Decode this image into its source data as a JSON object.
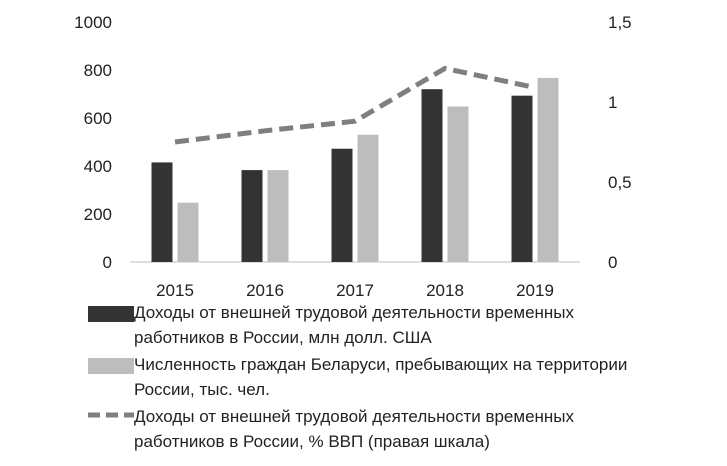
{
  "chart_data": {
    "type": "bar",
    "categories": [
      "2015",
      "2016",
      "2017",
      "2018",
      "2019"
    ],
    "series": [
      {
        "name": "Доходы от внешней трудовой деятельности временных работников в России, млн  долл. США",
        "type": "bar",
        "axis": "left",
        "color": "#333333",
        "values": [
          415,
          383,
          472,
          720,
          693
        ]
      },
      {
        "name": "Численность граждан Беларуси, пребывающих на территории России, тыс. чел.",
        "type": "bar",
        "axis": "left",
        "color": "#bdbdbd",
        "values": [
          247,
          383,
          530,
          648,
          767
        ]
      },
      {
        "name": "Доходы от внешней трудовой деятельности временных работников в России, % ВВП  (правая шкала)",
        "type": "line",
        "style": "dashed",
        "axis": "right",
        "color": "#7f7f7f",
        "values": [
          0.75,
          0.82,
          0.88,
          1.21,
          1.09
        ]
      }
    ],
    "y_left": {
      "ylim": [
        0,
        1000
      ],
      "ticks": [
        "0",
        "200",
        "400",
        "600",
        "800",
        "1000"
      ]
    },
    "y_right": {
      "ylim": [
        0,
        1.5
      ],
      "ticks": [
        "0",
        "0,5",
        "1",
        "1,5"
      ]
    },
    "grid": false,
    "legend_position": "bottom",
    "title": "",
    "xlabel": "",
    "ylabel": ""
  }
}
